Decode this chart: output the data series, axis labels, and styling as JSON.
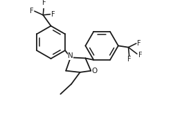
{
  "background_color": "#ffffff",
  "line_color": "#1a1a1a",
  "line_width": 1.3,
  "font_size": 7.0,
  "xlim": [
    0,
    10
  ],
  "ylim": [
    0,
    8
  ],
  "figsize": [
    2.51,
    1.93
  ],
  "dpi": 100
}
